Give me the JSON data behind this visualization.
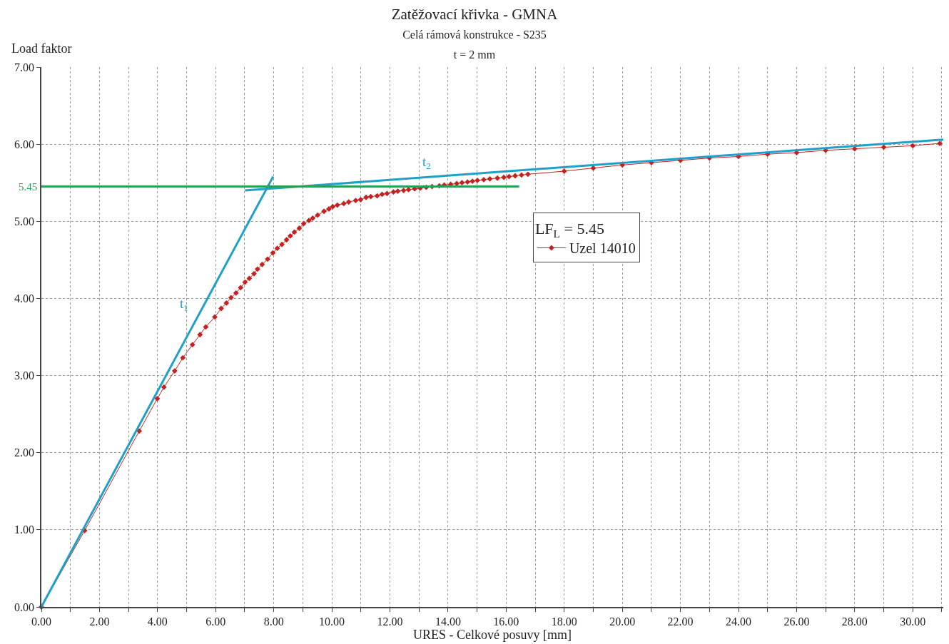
{
  "chart_data": {
    "type": "line",
    "title": "Zatěžovací křivka - GMNA",
    "subtitle": "Celá rámová konstrukce - S235\nt = 2 mm",
    "xlabel": "URES - Celkové posuvy [mm]",
    "ylabel": "Load faktor",
    "legend_title": "LF$_{L}$ = 5.45",
    "series": [
      {
        "name": "Uzel 14010",
        "color": "#c8201e",
        "marker": "diamond",
        "x": [
          0,
          1.49,
          3.37,
          3.99,
          4.22,
          4.59,
          4.87,
          5.2,
          5.46,
          5.66,
          5.97,
          6.19,
          6.37,
          6.53,
          6.7,
          6.86,
          7.01,
          7.16,
          7.32,
          7.44,
          7.6,
          7.79,
          7.97,
          8.12,
          8.28,
          8.44,
          8.57,
          8.71,
          8.88,
          9.03,
          9.21,
          9.34,
          9.51,
          9.73,
          9.9,
          10.03,
          10.19,
          10.41,
          10.58,
          10.82,
          10.99,
          11.18,
          11.34,
          11.56,
          11.73,
          11.9,
          12.12,
          12.27,
          12.47,
          12.64,
          12.85,
          13.04,
          13.25,
          13.45,
          13.7,
          13.87,
          14.09,
          14.3,
          14.48,
          14.67,
          14.84,
          15.01,
          15.23,
          15.44,
          15.7,
          15.92,
          16.1,
          16.31,
          16.53,
          16.75,
          18,
          19,
          20,
          21,
          22,
          23,
          24,
          25,
          26,
          27,
          28,
          29,
          30,
          30.93
        ],
        "values": [
          0,
          0.99,
          2.28,
          2.7,
          2.85,
          3.06,
          3.23,
          3.4,
          3.53,
          3.63,
          3.76,
          3.87,
          3.94,
          4.01,
          4.07,
          4.14,
          4.21,
          4.26,
          4.32,
          4.38,
          4.44,
          4.51,
          4.59,
          4.65,
          4.7,
          4.76,
          4.81,
          4.86,
          4.91,
          4.97,
          5.01,
          5.04,
          5.08,
          5.13,
          5.16,
          5.19,
          5.21,
          5.23,
          5.25,
          5.27,
          5.28,
          5.31,
          5.32,
          5.33,
          5.35,
          5.36,
          5.38,
          5.39,
          5.4,
          5.41,
          5.42,
          5.43,
          5.44,
          5.45,
          5.46,
          5.47,
          5.48,
          5.49,
          5.5,
          5.51,
          5.52,
          5.53,
          5.54,
          5.55,
          5.56,
          5.57,
          5.58,
          5.59,
          5.6,
          5.61,
          5.65,
          5.69,
          5.73,
          5.76,
          5.79,
          5.82,
          5.84,
          5.87,
          5.89,
          5.92,
          5.94,
          5.96,
          5.98,
          6.01
        ]
      },
      {
        "name": "t$_{1}$",
        "color": "#1fa0c8",
        "marker": "none",
        "x": [
          0,
          7.98
        ],
        "values": [
          0,
          5.58
        ]
      },
      {
        "name": "t$_{2}$",
        "color": "#1fa0c8",
        "marker": "none",
        "x": [
          7.01,
          31.05
        ],
        "values": [
          5.4,
          6.06
        ]
      },
      {
        "color": "#2ca05a",
        "marker": "none",
        "x": [
          0,
          16.45
        ],
        "values": [
          5.45,
          5.45
        ]
      }
    ],
    "annotations": [
      {
        "text": "5.45",
        "x": 0,
        "y": 5.45
      }
    ],
    "xlim": [
      0,
      31.05
    ],
    "ylim": [
      0,
      7
    ],
    "xticks": [
      {
        "value": 0,
        "label": "0.00"
      },
      {
        "value": 1,
        "label": null
      },
      {
        "value": 2,
        "label": "2.00"
      },
      {
        "value": 3,
        "label": null
      },
      {
        "value": 4,
        "label": "4.00"
      },
      {
        "value": 5,
        "label": null
      },
      {
        "value": 6,
        "label": "6.00"
      },
      {
        "value": 7,
        "label": null
      },
      {
        "value": 8,
        "label": "8.00"
      },
      {
        "value": 9,
        "label": null
      },
      {
        "value": 10,
        "label": "10.00"
      },
      {
        "value": 11,
        "label": null
      },
      {
        "value": 12,
        "label": "12.00"
      },
      {
        "value": 13,
        "label": null
      },
      {
        "value": 14,
        "label": "14.00"
      },
      {
        "value": 15,
        "label": null
      },
      {
        "value": 16,
        "label": "16.00"
      },
      {
        "value": 17,
        "label": null
      },
      {
        "value": 18,
        "label": "18.00"
      },
      {
        "value": 19,
        "label": null
      },
      {
        "value": 20,
        "label": "20.00"
      },
      {
        "value": 21,
        "label": null
      },
      {
        "value": 22,
        "label": "22.00"
      },
      {
        "value": 23,
        "label": null
      },
      {
        "value": 24,
        "label": "24.00"
      },
      {
        "value": 25,
        "label": null
      },
      {
        "value": 26,
        "label": "26.00"
      },
      {
        "value": 27,
        "label": null
      },
      {
        "value": 28,
        "label": "28.00"
      },
      {
        "value": 29,
        "label": null
      },
      {
        "value": 30,
        "label": "30.00"
      },
      {
        "value": 31,
        "label": null
      }
    ],
    "yticks": [
      {
        "value": 0,
        "label": "0.00"
      },
      {
        "value": 1,
        "label": "1.00"
      },
      {
        "value": 2,
        "label": "2.00"
      },
      {
        "value": 3,
        "label": "3.00"
      },
      {
        "value": 4,
        "label": "4.00"
      },
      {
        "value": 5,
        "label": "5.00"
      },
      {
        "value": 6,
        "label": "6.00"
      },
      {
        "value": 7,
        "label": "7.00"
      }
    ],
    "grid": true,
    "legend": "center",
    "line_style": "solid"
  }
}
